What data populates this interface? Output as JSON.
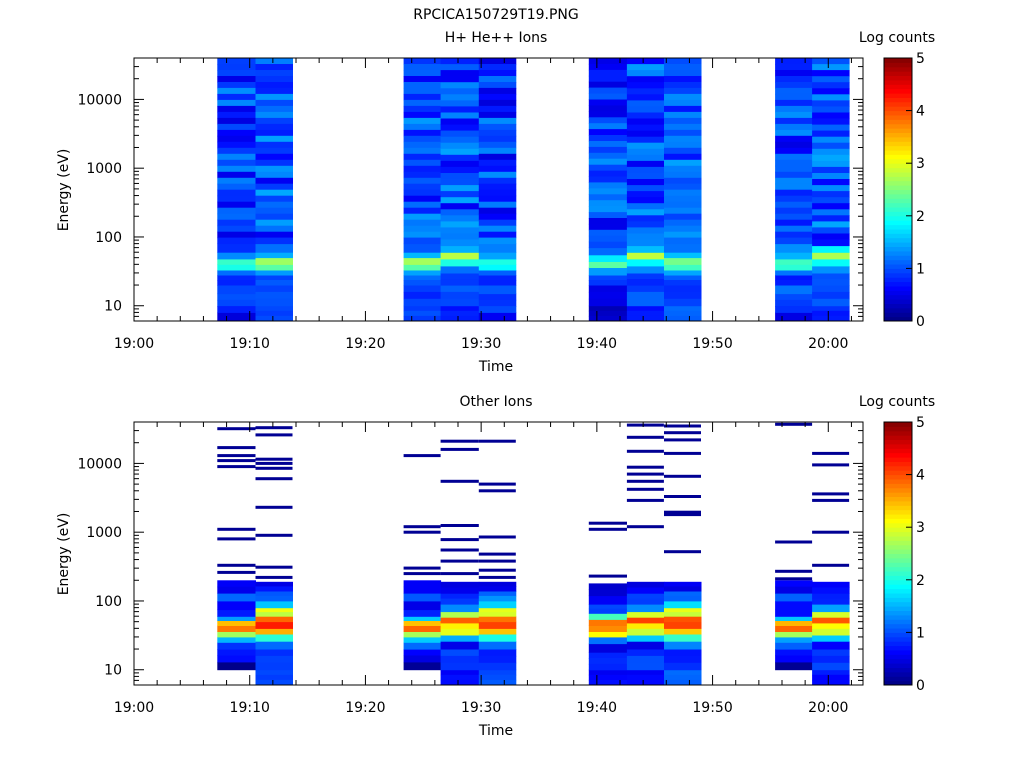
{
  "figure_title": "RPCICA150729T19.PNG",
  "chart_data": [
    {
      "type": "heatmap",
      "title": "H+ He++ Ions",
      "xlabel": "Time",
      "ylabel": "Energy (eV)",
      "y_scale": "log",
      "ylim": [
        6,
        40000
      ],
      "y_ticks": [
        {
          "value": 10,
          "label": "10"
        },
        {
          "value": 100,
          "label": "100"
        },
        {
          "value": 1000,
          "label": "1000"
        },
        {
          "value": 10000,
          "label": "10000"
        }
      ],
      "x_ticks": [
        "19:00",
        "19:10",
        "19:20",
        "19:30",
        "19:40",
        "19:50",
        "20:00"
      ],
      "x_tick_minutes": [
        0,
        10,
        20,
        30,
        40,
        50,
        60
      ],
      "xlim_minutes": [
        0,
        63
      ],
      "colorbar": {
        "label": "Log counts",
        "range": [
          0,
          5
        ],
        "ticks": [
          "0",
          "1",
          "2",
          "3",
          "4",
          "5"
        ]
      },
      "columns": [
        {
          "t0": 7.2,
          "t1": 10.5,
          "profile": "ionA"
        },
        {
          "t0": 10.5,
          "t1": 13.7,
          "profile": "ionB"
        },
        {
          "t0": 23.3,
          "t1": 26.5,
          "profile": "ionB"
        },
        {
          "t0": 26.5,
          "t1": 29.8,
          "profile": "ionC"
        },
        {
          "t0": 29.8,
          "t1": 33.0,
          "profile": "ionA"
        },
        {
          "t0": 39.3,
          "t1": 42.6,
          "profile": "ionD"
        },
        {
          "t0": 42.6,
          "t1": 45.8,
          "profile": "ionC"
        },
        {
          "t0": 45.8,
          "t1": 49.0,
          "profile": "ionB"
        },
        {
          "t0": 55.4,
          "t1": 58.6,
          "profile": "ionA"
        },
        {
          "t0": 58.6,
          "t1": 61.8,
          "profile": "ionC"
        }
      ],
      "profiles": {
        "ionA": [
          [
            6,
            8,
            0.6
          ],
          [
            8,
            15,
            0.9
          ],
          [
            15,
            20,
            1.1
          ],
          [
            20,
            28,
            0.8
          ],
          [
            28,
            33,
            1.2
          ],
          [
            33,
            40,
            2.0
          ],
          [
            40,
            48,
            2.1
          ],
          [
            48,
            60,
            1.4
          ],
          [
            60,
            80,
            1.0
          ],
          [
            80,
            40000,
            0.9
          ]
        ],
        "ionB": [
          [
            6,
            10,
            1.0
          ],
          [
            10,
            20,
            0.9
          ],
          [
            20,
            28,
            1.0
          ],
          [
            28,
            33,
            1.3
          ],
          [
            33,
            40,
            2.3
          ],
          [
            40,
            50,
            2.6
          ],
          [
            50,
            60,
            1.5
          ],
          [
            60,
            80,
            1.2
          ],
          [
            80,
            40000,
            1.0
          ]
        ],
        "ionC": [
          [
            6,
            10,
            0.8
          ],
          [
            10,
            20,
            1.0
          ],
          [
            20,
            30,
            0.9
          ],
          [
            30,
            38,
            1.2
          ],
          [
            38,
            48,
            1.9
          ],
          [
            48,
            60,
            2.8
          ],
          [
            60,
            75,
            1.5
          ],
          [
            75,
            40000,
            1.0
          ]
        ],
        "ionD": [
          [
            6,
            10,
            0.3
          ],
          [
            10,
            20,
            0.5
          ],
          [
            20,
            28,
            1.0
          ],
          [
            28,
            36,
            1.4
          ],
          [
            36,
            44,
            2.2
          ],
          [
            44,
            55,
            1.7
          ],
          [
            55,
            70,
            1.1
          ],
          [
            70,
            40000,
            0.9
          ]
        ]
      }
    },
    {
      "type": "heatmap",
      "title": "Other Ions",
      "xlabel": "Time",
      "ylabel": "Energy (eV)",
      "y_scale": "log",
      "ylim": [
        6,
        40000
      ],
      "y_ticks": [
        {
          "value": 10,
          "label": "10"
        },
        {
          "value": 100,
          "label": "100"
        },
        {
          "value": 1000,
          "label": "1000"
        },
        {
          "value": 10000,
          "label": "10000"
        }
      ],
      "x_ticks": [
        "19:00",
        "19:10",
        "19:20",
        "19:30",
        "19:40",
        "19:50",
        "20:00"
      ],
      "x_tick_minutes": [
        0,
        10,
        20,
        30,
        40,
        50,
        60
      ],
      "xlim_minutes": [
        0,
        63
      ],
      "colorbar": {
        "label": "Log counts",
        "range": [
          0,
          5
        ],
        "ticks": [
          "0",
          "1",
          "2",
          "3",
          "4",
          "5"
        ]
      },
      "columns": [
        {
          "t0": 7.2,
          "t1": 10.5,
          "profile": "otherA",
          "streaks": [
            260,
            330,
            800,
            1100,
            9000,
            11000,
            13000,
            17000,
            32000
          ]
        },
        {
          "t0": 10.5,
          "t1": 13.7,
          "profile": "otherB",
          "streaks": [
            220,
            310,
            900,
            2300,
            6000,
            8500,
            10000,
            11500,
            26000,
            33000
          ]
        },
        {
          "t0": 23.3,
          "t1": 26.5,
          "profile": "otherA",
          "streaks": [
            250,
            300,
            1000,
            1200,
            13000
          ]
        },
        {
          "t0": 26.5,
          "t1": 29.8,
          "profile": "otherC",
          "streaks": [
            250,
            380,
            550,
            780,
            1250,
            5500,
            16000,
            21000
          ]
        },
        {
          "t0": 29.8,
          "t1": 33.0,
          "profile": "otherB",
          "streaks": [
            220,
            280,
            380,
            480,
            850,
            4000,
            5000,
            21000
          ]
        },
        {
          "t0": 39.3,
          "t1": 42.6,
          "profile": "otherD",
          "streaks": [
            230,
            1100,
            1350
          ]
        },
        {
          "t0": 42.6,
          "t1": 45.8,
          "profile": "otherC",
          "streaks": [
            1200,
            2900,
            4200,
            5500,
            7000,
            8800,
            15000,
            24000,
            36000
          ]
        },
        {
          "t0": 45.8,
          "t1": 49.0,
          "profile": "otherB",
          "streaks": [
            520,
            1800,
            1950,
            3300,
            6500,
            14000,
            22000,
            28000,
            35000
          ]
        },
        {
          "t0": 55.4,
          "t1": 58.6,
          "profile": "otherA",
          "streaks": [
            210,
            270,
            720,
            37000
          ]
        },
        {
          "t0": 58.6,
          "t1": 61.8,
          "profile": "otherC",
          "streaks": [
            330,
            1000,
            2900,
            3600,
            9500,
            14000
          ]
        }
      ],
      "profiles": {
        "otherA": [
          [
            10,
            13,
            0.2
          ],
          [
            13,
            20,
            0.6
          ],
          [
            20,
            25,
            1.0
          ],
          [
            25,
            30,
            1.5
          ],
          [
            30,
            36,
            2.7
          ],
          [
            36,
            44,
            3.8
          ],
          [
            44,
            52,
            3.4
          ],
          [
            52,
            60,
            1.5
          ],
          [
            60,
            75,
            0.8
          ],
          [
            75,
            100,
            0.6
          ],
          [
            100,
            130,
            1.0
          ],
          [
            130,
            200,
            0.5
          ]
        ],
        "otherB": [
          [
            6,
            10,
            1.0
          ],
          [
            10,
            20,
            0.8
          ],
          [
            20,
            26,
            1.2
          ],
          [
            26,
            33,
            2.0
          ],
          [
            33,
            40,
            3.5
          ],
          [
            40,
            50,
            4.2
          ],
          [
            50,
            60,
            3.9
          ],
          [
            60,
            70,
            2.9
          ],
          [
            70,
            80,
            3.1
          ],
          [
            80,
            100,
            1.6
          ],
          [
            100,
            140,
            1.2
          ],
          [
            140,
            190,
            0.6
          ]
        ],
        "otherC": [
          [
            6,
            10,
            0.7
          ],
          [
            10,
            20,
            0.9
          ],
          [
            20,
            26,
            0.5
          ],
          [
            26,
            32,
            1.5
          ],
          [
            32,
            40,
            2.9
          ],
          [
            40,
            48,
            3.2
          ],
          [
            48,
            58,
            4.0
          ],
          [
            58,
            70,
            2.8
          ],
          [
            70,
            90,
            1.4
          ],
          [
            90,
            130,
            0.9
          ],
          [
            130,
            190,
            0.6
          ]
        ],
        "otherD": [
          [
            6,
            10,
            0.6
          ],
          [
            10,
            18,
            0.8
          ],
          [
            18,
            24,
            0.5
          ],
          [
            24,
            30,
            1.2
          ],
          [
            30,
            36,
            3.0
          ],
          [
            36,
            44,
            3.6
          ],
          [
            44,
            54,
            3.9
          ],
          [
            54,
            66,
            2.2
          ],
          [
            66,
            90,
            0.9
          ],
          [
            90,
            120,
            0.5
          ],
          [
            120,
            180,
            0.3
          ]
        ]
      }
    }
  ]
}
